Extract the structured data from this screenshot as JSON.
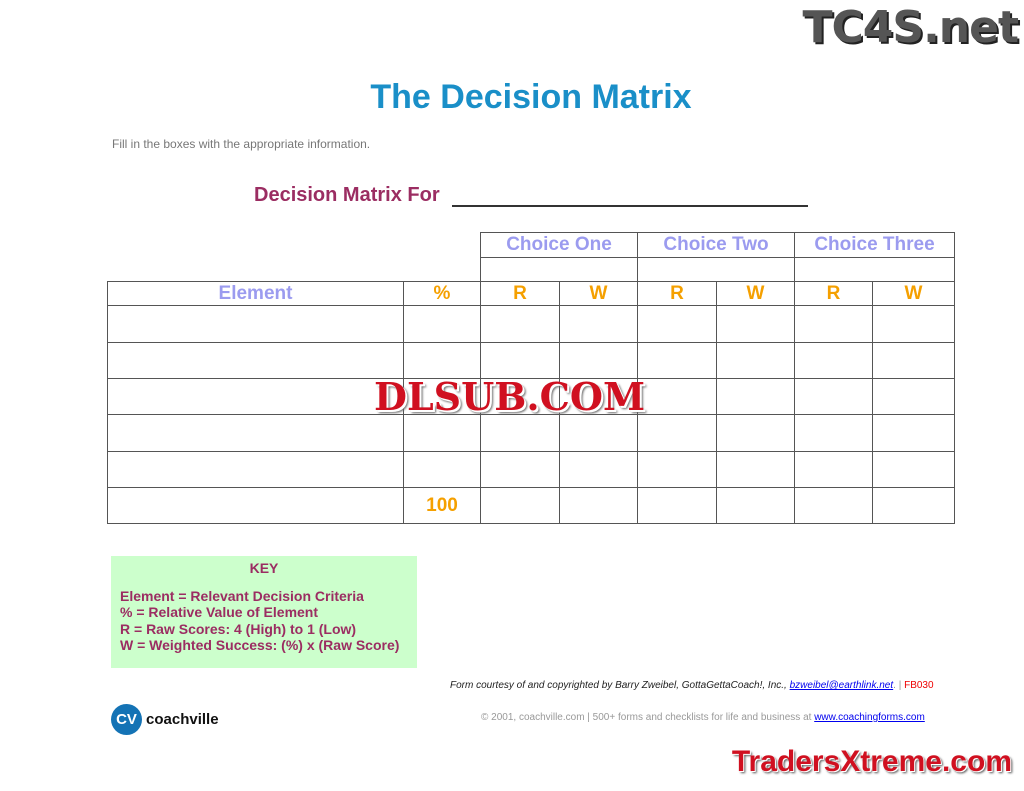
{
  "title": "The Decision Matrix",
  "instructions": "Fill in the boxes with the appropriate information.",
  "matrix_for_label": "Decision Matrix For",
  "table": {
    "choices": [
      "Choice One",
      "Choice Two",
      "Choice Three"
    ],
    "element_header": "Element",
    "percent_header": "%",
    "r_label": "R",
    "w_label": "W",
    "total_percent": "100"
  },
  "key": {
    "title": "KEY",
    "lines": [
      "Element = Relevant Decision Criteria",
      "% = Relative Value of Element",
      "R = Raw Scores: 4 (High) to 1 (Low)",
      "W = Weighted Success: (%) x (Raw Score)"
    ]
  },
  "footer": {
    "credit": "Form courtesy of and copyrighted by Barry Zweibel, GottaGettaCoach!, Inc., ",
    "email": "bzweibel@earthlink.net",
    "code_sep": ". | ",
    "code": "FB030",
    "copyright": "© 2001, coachville.com | 500+ forms and checklists for life and business at ",
    "site": "www.coachingforms.com",
    "logo_mark": "CV",
    "logo_name": "coachville"
  },
  "watermarks": [
    "TC4S.net",
    "DLSUB.COM",
    "TradersXtreme.com"
  ],
  "colors": {
    "title": "#1a8fc8",
    "accent": "#9b2d62",
    "choice": "#9b9bef",
    "rw": "#f5a000",
    "key_bg": "#ccffcc"
  }
}
